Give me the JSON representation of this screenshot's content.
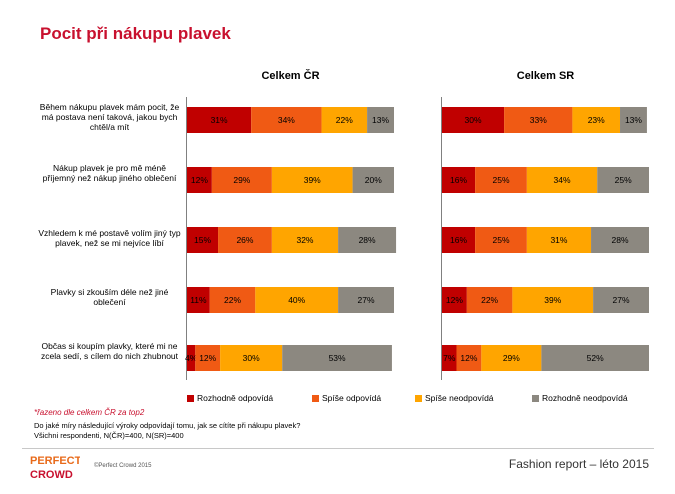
{
  "title": "Pocit při nákupu plavek",
  "chart_data": {
    "type": "bar",
    "stacked": true,
    "orientation": "horizontal",
    "categories": [
      "Během nákupu plavek mám pocit, že má postava není taková, jakou bych chtěl/a mít",
      "Nákup plavek je pro mě méně příjemný než nákup jiného oblečení",
      "Vzhledem k mé postavě volím jiný typ plavek, než se mi nejvíce líbí",
      "Plavky si zkouším déle než jiné oblečení",
      "Občas si koupím plavky, které mi ne zcela sedí, s cílem do nich zhubnout"
    ],
    "series_names": [
      "Rozhodně odpovídá",
      "Spíše odpovídá",
      "Spíše neodpovídá",
      "Rozhodně neodpovídá"
    ],
    "colors": [
      "#c00000",
      "#f05a14",
      "#ffa500",
      "#8c8880"
    ],
    "panels": [
      {
        "title": "Celkem ČR",
        "values": [
          [
            31,
            34,
            22,
            13
          ],
          [
            12,
            29,
            39,
            20
          ],
          [
            15,
            26,
            32,
            28
          ],
          [
            11,
            22,
            40,
            27
          ],
          [
            4,
            12,
            30,
            53
          ]
        ]
      },
      {
        "title": "Celkem SR",
        "values": [
          [
            30,
            33,
            23,
            13
          ],
          [
            16,
            25,
            34,
            25
          ],
          [
            16,
            25,
            31,
            28
          ],
          [
            12,
            22,
            39,
            27
          ],
          [
            7,
            12,
            29,
            52
          ]
        ]
      }
    ],
    "value_suffix": "%",
    "xlim": [
      0,
      100
    ]
  },
  "notes": {
    "sort_note": "*řazeno dle celkem ČR za top2",
    "question": "Do jaké míry následující výroky odpovídají tomu, jak se cítíte při nákupu plavek?",
    "base": "Všichni respondenti, N(ČR)=400, N(SR)=400"
  },
  "footer": {
    "report": "Fashion report – léto 2015",
    "copyright": "©Perfect Crowd 2015",
    "logo_lines": [
      "PERFECT",
      "CROWD"
    ]
  }
}
